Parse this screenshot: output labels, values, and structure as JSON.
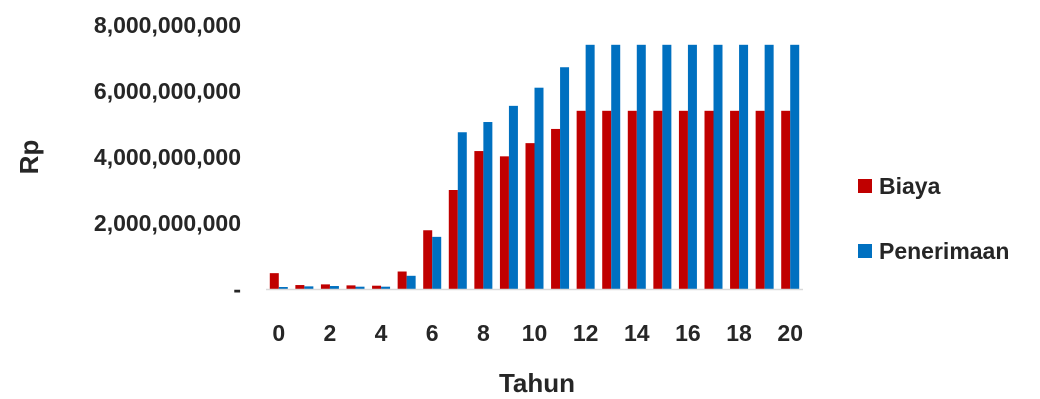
{
  "chart_data": {
    "type": "bar",
    "title": "",
    "xlabel": "Tahun",
    "ylabel": "Rp",
    "ylim": [
      0,
      8000000000
    ],
    "y_ticks": [
      {
        "value": 0,
        "label": "-"
      },
      {
        "value": 2000000000,
        "label": "2,000,000,000"
      },
      {
        "value": 4000000000,
        "label": "4,000,000,000"
      },
      {
        "value": 6000000000,
        "label": "6,000,000,000"
      },
      {
        "value": 8000000000,
        "label": "8,000,000,000"
      }
    ],
    "x_tick_labels": [
      "0",
      "2",
      "4",
      "6",
      "8",
      "10",
      "12",
      "14",
      "16",
      "18",
      "20"
    ],
    "categories": [
      0,
      1,
      2,
      3,
      4,
      5,
      6,
      7,
      8,
      9,
      10,
      11,
      12,
      13,
      14,
      15,
      16,
      17,
      18,
      19,
      20
    ],
    "grid": false,
    "legend_position": "right",
    "series": [
      {
        "name": "Biaya",
        "color": "#C00000",
        "values": [
          480000000,
          120000000,
          140000000,
          110000000,
          100000000,
          530000000,
          1780000000,
          3000000000,
          4180000000,
          4020000000,
          4420000000,
          4850000000,
          5400000000,
          5400000000,
          5400000000,
          5400000000,
          5400000000,
          5400000000,
          5400000000,
          5400000000,
          5400000000
        ]
      },
      {
        "name": "Penerimaan",
        "color": "#0070C0",
        "values": [
          60000000,
          80000000,
          90000000,
          70000000,
          70000000,
          400000000,
          1580000000,
          4750000000,
          5060000000,
          5550000000,
          6100000000,
          6720000000,
          7400000000,
          7400000000,
          7400000000,
          7400000000,
          7400000000,
          7400000000,
          7400000000,
          7400000000,
          7400000000
        ]
      }
    ]
  }
}
